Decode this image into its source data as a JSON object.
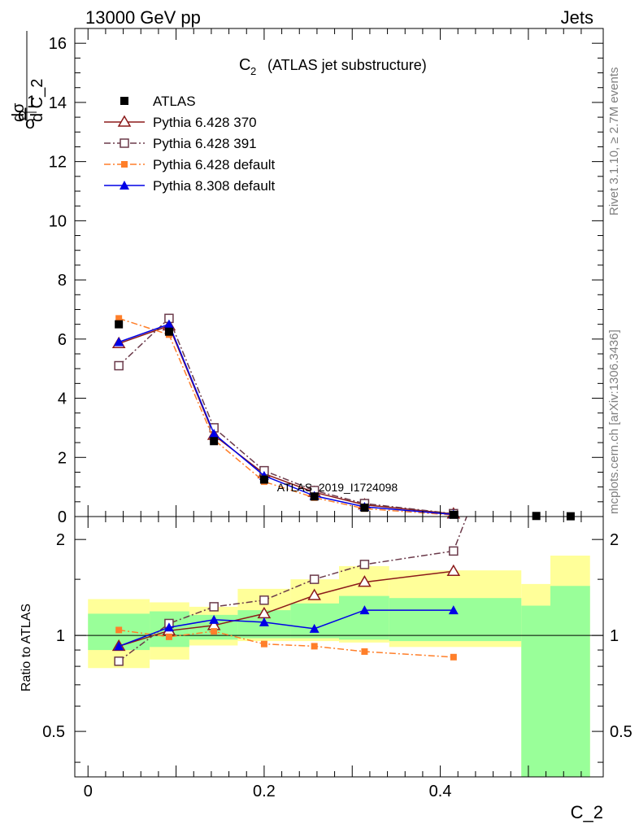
{
  "header": {
    "energy_label": "13000 GeV pp",
    "process_label": "Jets"
  },
  "side_labels": {
    "rivet": "Rivet 3.1.10, ≥ 2.7M events",
    "mcplots": "mcplots.cern.ch [arXiv:1306.3436]"
  },
  "chart_data": [
    {
      "type": "line",
      "title_main": "C",
      "title_sub": "2",
      "title_rest": "(ATLAS jet substructure)",
      "ylabel": "1/σ dσ/d C_2",
      "ylabel_parts": {
        "d1": "d",
        "one": "1",
        "sigma1": "σ",
        "d2": "d",
        "dsigma": "dσ",
        "dc": "d C_2"
      },
      "xlim": [
        -0.015,
        0.585
      ],
      "ylim": [
        0,
        16.5
      ],
      "yticks": [
        0,
        2,
        4,
        6,
        8,
        10,
        12,
        14,
        16
      ],
      "ytick_labels": [
        "0",
        "2",
        "4",
        "6",
        "8",
        "10",
        "12",
        "14",
        "16"
      ],
      "watermark": "ATLAS_2019_I1724098",
      "legend_position": "top-left",
      "series": [
        {
          "name": "ATLAS",
          "color": "#000000",
          "marker": "filled-square",
          "line": "none",
          "x": [
            0.035,
            0.092,
            0.143,
            0.2,
            0.257,
            0.314,
            0.415,
            0.509,
            0.548
          ],
          "y": [
            6.5,
            6.25,
            2.55,
            1.25,
            0.68,
            0.3,
            0.06,
            0.02,
            0.01
          ]
        },
        {
          "name": "Pythia 6.428 370",
          "color": "#8b1a1a",
          "marker": "open-triangle",
          "line": "solid",
          "x": [
            0.035,
            0.092,
            0.143,
            0.2,
            0.257,
            0.314,
            0.415
          ],
          "y": [
            5.85,
            6.45,
            2.75,
            1.45,
            0.82,
            0.4,
            0.09
          ]
        },
        {
          "name": "Pythia 6.428 391",
          "color": "#6b3a4a",
          "marker": "open-square",
          "line": "dashdot",
          "x": [
            0.035,
            0.092,
            0.143,
            0.2,
            0.257,
            0.314,
            0.415
          ],
          "y": [
            5.1,
            6.7,
            3.0,
            1.55,
            0.88,
            0.44,
            0.1
          ]
        },
        {
          "name": "Pythia 6.428 default",
          "color": "#ff7f2a",
          "marker": "filled-square-small",
          "line": "dashdot",
          "x": [
            0.035,
            0.092,
            0.143,
            0.2,
            0.257,
            0.314,
            0.415
          ],
          "y": [
            6.7,
            6.15,
            2.6,
            1.18,
            0.64,
            0.27,
            0.05
          ]
        },
        {
          "name": "Pythia 8.308 default",
          "color": "#0000e6",
          "marker": "filled-triangle",
          "line": "solid",
          "x": [
            0.035,
            0.092,
            0.143,
            0.2,
            0.257,
            0.314,
            0.415
          ],
          "y": [
            5.9,
            6.5,
            2.8,
            1.38,
            0.7,
            0.33,
            0.07
          ]
        }
      ]
    },
    {
      "type": "line",
      "ylabel": "Ratio to ATLAS",
      "xlabel": "C_2",
      "xlim": [
        -0.015,
        0.585
      ],
      "ylim": [
        0.36,
        2.36
      ],
      "y_scale": "log",
      "yticks": [
        0.5,
        1,
        2
      ],
      "ytick_labels": [
        "0.5",
        "1",
        "2"
      ],
      "xticks": [
        0,
        0.2,
        0.4
      ],
      "xtick_labels": [
        "0",
        "0.2",
        "0.4"
      ],
      "reference_line": 1,
      "bands": {
        "edges": [
          0,
          0.07,
          0.115,
          0.17,
          0.23,
          0.285,
          0.342,
          0.492,
          0.525,
          0.57
        ],
        "yellow_low": [
          0.79,
          0.84,
          0.93,
          0.96,
          0.96,
          0.95,
          0.92,
          0.36,
          0.36
        ],
        "yellow_high": [
          1.3,
          1.27,
          1.23,
          1.4,
          1.5,
          1.65,
          1.6,
          1.45,
          1.78
        ],
        "green_low": [
          0.9,
          0.92,
          0.97,
          0.98,
          0.98,
          0.97,
          0.96,
          0.36,
          0.36
        ],
        "green_high": [
          1.17,
          1.19,
          1.16,
          1.2,
          1.26,
          1.33,
          1.31,
          1.24,
          1.43
        ]
      },
      "series": [
        {
          "name": "Pythia 6.428 370",
          "color": "#8b1a1a",
          "marker": "open-triangle",
          "line": "solid",
          "x": [
            0.035,
            0.092,
            0.143,
            0.2,
            0.257,
            0.314,
            0.415
          ],
          "y": [
            0.925,
            1.035,
            1.075,
            1.17,
            1.335,
            1.47,
            1.59
          ]
        },
        {
          "name": "Pythia 6.428 391",
          "color": "#6b3a4a",
          "marker": "open-square",
          "line": "dashdot",
          "x": [
            0.035,
            0.092,
            0.143,
            0.2,
            0.257,
            0.314,
            0.415,
            0.43
          ],
          "y": [
            0.83,
            1.09,
            1.23,
            1.29,
            1.5,
            1.67,
            1.84,
            2.36
          ]
        },
        {
          "name": "Pythia 6.428 default",
          "color": "#ff7f2a",
          "marker": "filled-square-small",
          "line": "dashdot",
          "x": [
            0.035,
            0.092,
            0.143,
            0.2,
            0.257,
            0.314,
            0.415
          ],
          "y": [
            1.04,
            0.99,
            1.03,
            0.94,
            0.925,
            0.89,
            0.855
          ]
        },
        {
          "name": "Pythia 8.308 default",
          "color": "#0000e6",
          "marker": "filled-triangle",
          "line": "solid",
          "x": [
            0.035,
            0.092,
            0.143,
            0.2,
            0.257,
            0.314,
            0.415
          ],
          "y": [
            0.925,
            1.06,
            1.12,
            1.1,
            1.05,
            1.2,
            1.2
          ]
        }
      ]
    }
  ]
}
